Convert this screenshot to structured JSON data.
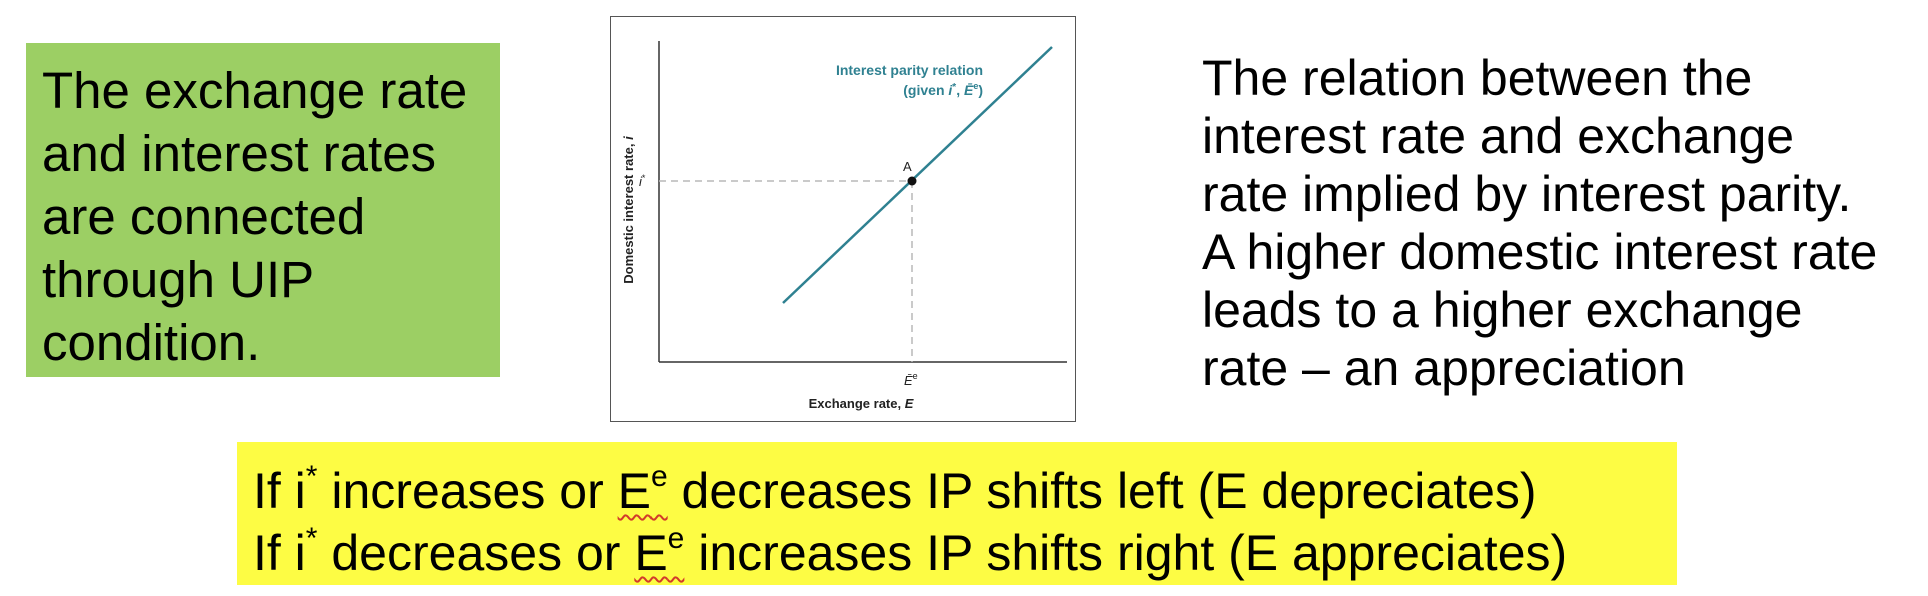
{
  "green_box": {
    "text": "The exchange rate\nand interest rates\nare connected\nthrough UIP\ncondition."
  },
  "figure": {
    "curve_label_line1": "Interest parity relation",
    "curve_label_line2_pre": "(given ",
    "curve_label_line2_istar": "i",
    "curve_label_line2_star": "*",
    "curve_label_line2_sep": ", ",
    "curve_label_line2_E": "Ē",
    "curve_label_line2_e": "e",
    "curve_label_line2_post": ")",
    "point_label": "A",
    "y_tick_label": "i",
    "y_tick_star": "*",
    "x_tick_label": "Ē",
    "x_tick_sup": "e",
    "y_axis_title": "Domestic interest rate, ",
    "y_axis_var": "i",
    "x_axis_title": "Exchange rate, ",
    "x_axis_var": "E",
    "colors": {
      "curve": "#2f8191",
      "guides": "#b8b8b8",
      "axes": "#333333",
      "point": "#111111"
    }
  },
  "right_text": {
    "text": "The relation between the\ninterest rate and exchange\nrate implied by interest parity.\nA higher domestic interest rate\nleads to a higher exchange\nrate – an appreciation"
  },
  "yellow_box": {
    "line1": {
      "pre": "If i",
      "star": "*",
      "mid": " increases or ",
      "E": "E",
      "e": "e",
      "post": " decreases IP shifts left (E depreciates)"
    },
    "line2": {
      "pre": "If i",
      "star": "*",
      "mid": " decreases or ",
      "E": "E",
      "e": "e",
      "post": " increases IP shifts right (E appreciates)"
    }
  }
}
